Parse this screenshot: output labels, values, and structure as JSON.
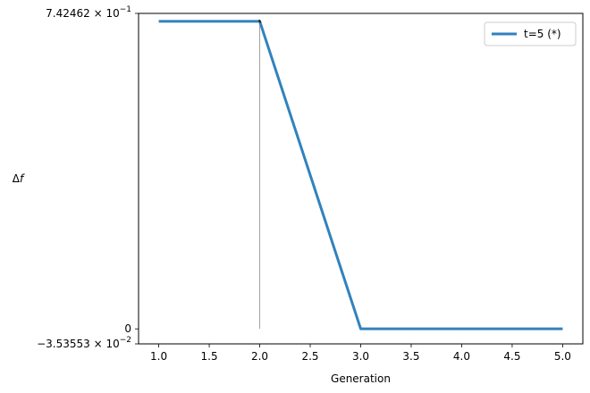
{
  "chart_data": {
    "type": "line",
    "title": "",
    "xlabel": "Generation",
    "ylabel": "Δf",
    "xlim": [
      0.8,
      5.2
    ],
    "ylim": [
      -0.0353553,
      0.742462
    ],
    "x_ticks": [
      1.0,
      1.5,
      2.0,
      2.5,
      3.0,
      3.5,
      4.0,
      4.5,
      5.0
    ],
    "x_tick_labels": [
      "1.0",
      "1.5",
      "2.0",
      "2.5",
      "3.0",
      "3.5",
      "4.0",
      "4.5",
      "5.0"
    ],
    "y_ticks": [
      {
        "value": 0.742462,
        "mantissa": "7.42462",
        "exp": "−1"
      },
      {
        "value": 0,
        "label": "0"
      },
      {
        "value": -0.0353553,
        "mantissa": "−3.53553",
        "exp": "−2"
      }
    ],
    "series": [
      {
        "name": "t=5 (*)",
        "color": "#3182bd",
        "x": [
          1,
          2,
          3,
          4,
          5
        ],
        "y": [
          0.7239,
          0.7239,
          0.0,
          0.0,
          0.0
        ]
      }
    ],
    "marker_line": {
      "x": 2,
      "y_from": 0.0,
      "y_to": 0.7239,
      "color": "#999999"
    },
    "legend_placement": "top-right",
    "grid": false
  }
}
